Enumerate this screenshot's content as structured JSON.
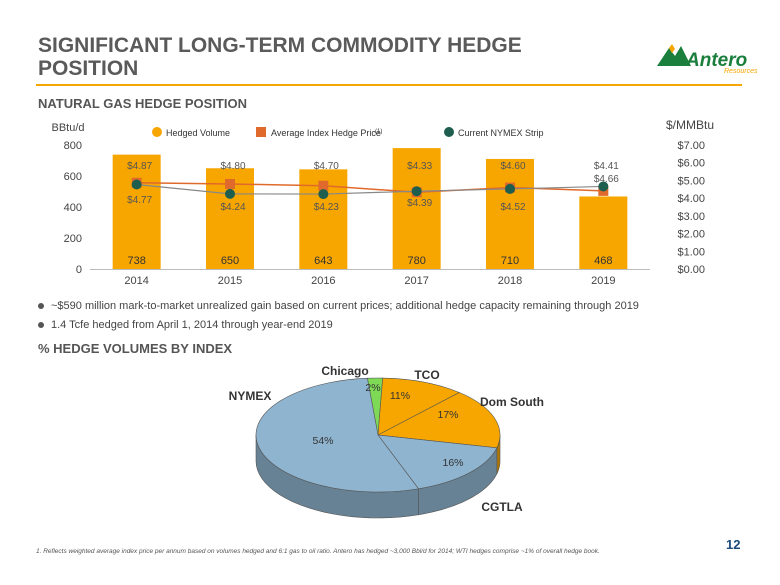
{
  "title": "SIGNIFICANT LONG-TERM COMMODITY HEDGE POSITION",
  "logo": {
    "text": "Antero",
    "sub": "Resources"
  },
  "section1_title": "NATURAL GAS HEDGE POSITION",
  "section2_title": "% HEDGE VOLUMES BY INDEX",
  "bullets": [
    "~$590 million mark-to-market unrealized gain based on current prices; additional hedge capacity remaining through 2019",
    "1.4 Tcfe hedged from April 1, 2014 through year-end 2019"
  ],
  "footnote": "1.   Reflects weighted average index price per annum based on volumes hedged and 6:1 gas to oil ratio.   Antero has hedged ~3,000 Bbl/d for 2014; WTI hedges comprise ~1% of overall hedge book.",
  "page_number": "12",
  "colors": {
    "accent": "#f7a600",
    "index_price": "#e06a2b",
    "nymex": "#1e5e4e",
    "title": "#5a5a5a"
  },
  "chart_data": [
    {
      "type": "bar",
      "categories": [
        "2014",
        "2015",
        "2016",
        "2017",
        "2018",
        "2019"
      ],
      "y_left_label": "BBtu/d",
      "y_right_label": "$/MMBtu",
      "y_left_ticks": [
        "800",
        "600",
        "400",
        "200",
        "0"
      ],
      "y_right_ticks": [
        "$7.00",
        "$6.00",
        "$5.00",
        "$4.00",
        "$3.00",
        "$2.00",
        "$1.00",
        "$0.00"
      ],
      "ylim_left": [
        0,
        800
      ],
      "ylim_right": [
        0,
        7
      ],
      "legend": {
        "hedged_volume": "Hedged Volume",
        "index_price": "Average Index Hedge Price",
        "index_price_sup": "(1)",
        "nymex": "Current NYMEX Strip"
      },
      "series": [
        {
          "name": "Hedged Volume",
          "values": [
            738,
            650,
            643,
            780,
            710,
            468
          ],
          "labels": [
            "738",
            "650",
            "643",
            "780",
            "710",
            "468"
          ]
        },
        {
          "name": "Average Index Hedge Price",
          "values": [
            4.87,
            4.8,
            4.7,
            4.33,
            4.6,
            4.41
          ],
          "labels": [
            "$4.87",
            "$4.80",
            "$4.70",
            "$4.33",
            "$4.60",
            "$4.41"
          ]
        },
        {
          "name": "Current NYMEX Strip",
          "values": [
            4.77,
            4.24,
            4.23,
            4.39,
            4.52,
            4.66
          ],
          "labels": [
            "$4.77",
            "$4.24",
            "$4.23",
            "$4.39",
            "$4.52",
            "$4.66"
          ]
        }
      ],
      "grid": false
    },
    {
      "type": "pie",
      "slices": [
        {
          "label": "Chicago",
          "value": 2,
          "pct_label": "2%",
          "color": "#7ed957"
        },
        {
          "label": "TCO",
          "value": 11,
          "pct_label": "11%",
          "color": "#f7a600"
        },
        {
          "label": "Dom South",
          "value": 17,
          "pct_label": "17%",
          "color": "#f7a600"
        },
        {
          "label": "CGTLA",
          "value": 16,
          "pct_label": "16%",
          "color": "#8fb4cf"
        },
        {
          "label": "NYMEX",
          "value": 54,
          "pct_label": "54%",
          "color": "#8fb4cf"
        }
      ]
    }
  ]
}
